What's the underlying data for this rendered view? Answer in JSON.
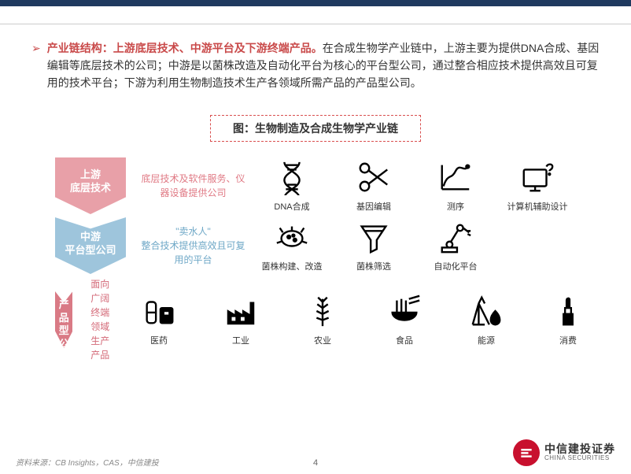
{
  "colors": {
    "navy": "#1f3a5f",
    "red": "#c94a4a",
    "pink": "#e8a0a8",
    "lightblue": "#9ec5dc",
    "darkpink": "#d97a85"
  },
  "bullet": {
    "highlight": "产业链结构：上游底层技术、中游平台及下游终端产品。",
    "text": "在合成生物学产业链中，上游主要为提供DNA合成、基因编辑等底层技术的公司；中游是以菌株改造及自动化平台为核心的平台型公司，通过整合相应技术提供高效且可复用的技术平台；下游为利用生物制造技术生产各领域所需产品的产品型公司。"
  },
  "chart_title": "图：生物制造及合成生物学产业链",
  "rows": [
    {
      "chevron_bg": "#e8a0a8",
      "chevron_line1": "上游",
      "chevron_line2": "底层技术",
      "chevron_notch": false,
      "desc_color": "#e07a85",
      "desc": "底层技术及软件服务、仪器设备提供公司",
      "icons": [
        {
          "name": "dna-icon",
          "label": "DNA合成"
        },
        {
          "name": "scissors-icon",
          "label": "基因编辑"
        },
        {
          "name": "sequencing-icon",
          "label": "测序"
        },
        {
          "name": "computer-icon",
          "label": "计算机辅助设计"
        }
      ]
    },
    {
      "chevron_bg": "#9ec5dc",
      "chevron_line1": "中游",
      "chevron_line2": "平台型公司",
      "chevron_notch": true,
      "desc_color": "#6fa8c7",
      "desc_pre": "\"卖水人\"",
      "desc": "整合技术提供高效且可复用的平台",
      "icons": [
        {
          "name": "microbe-icon",
          "label": "菌株构建、改造"
        },
        {
          "name": "funnel-icon",
          "label": "菌株筛选"
        },
        {
          "name": "robot-arm-icon",
          "label": "自动化平台"
        }
      ]
    },
    {
      "chevron_bg": "#d97a85",
      "chevron_line1": "下游",
      "chevron_line2": "产品型公司",
      "chevron_notch": true,
      "desc_color": "#d46a78",
      "desc": "面向广阔终端领域生产产品",
      "icons": [
        {
          "name": "pill-icon",
          "label": "医药"
        },
        {
          "name": "factory-icon",
          "label": "工业"
        },
        {
          "name": "wheat-icon",
          "label": "农业"
        },
        {
          "name": "noodle-icon",
          "label": "食品"
        },
        {
          "name": "oil-icon",
          "label": "能源"
        },
        {
          "name": "lipstick-icon",
          "label": "消费"
        }
      ]
    }
  ],
  "source": "资料来源：CB Insights，CAS，中信建投",
  "page": "4",
  "logo": {
    "cn": "中信建投证券",
    "en": "CHINA SECURITIES"
  }
}
